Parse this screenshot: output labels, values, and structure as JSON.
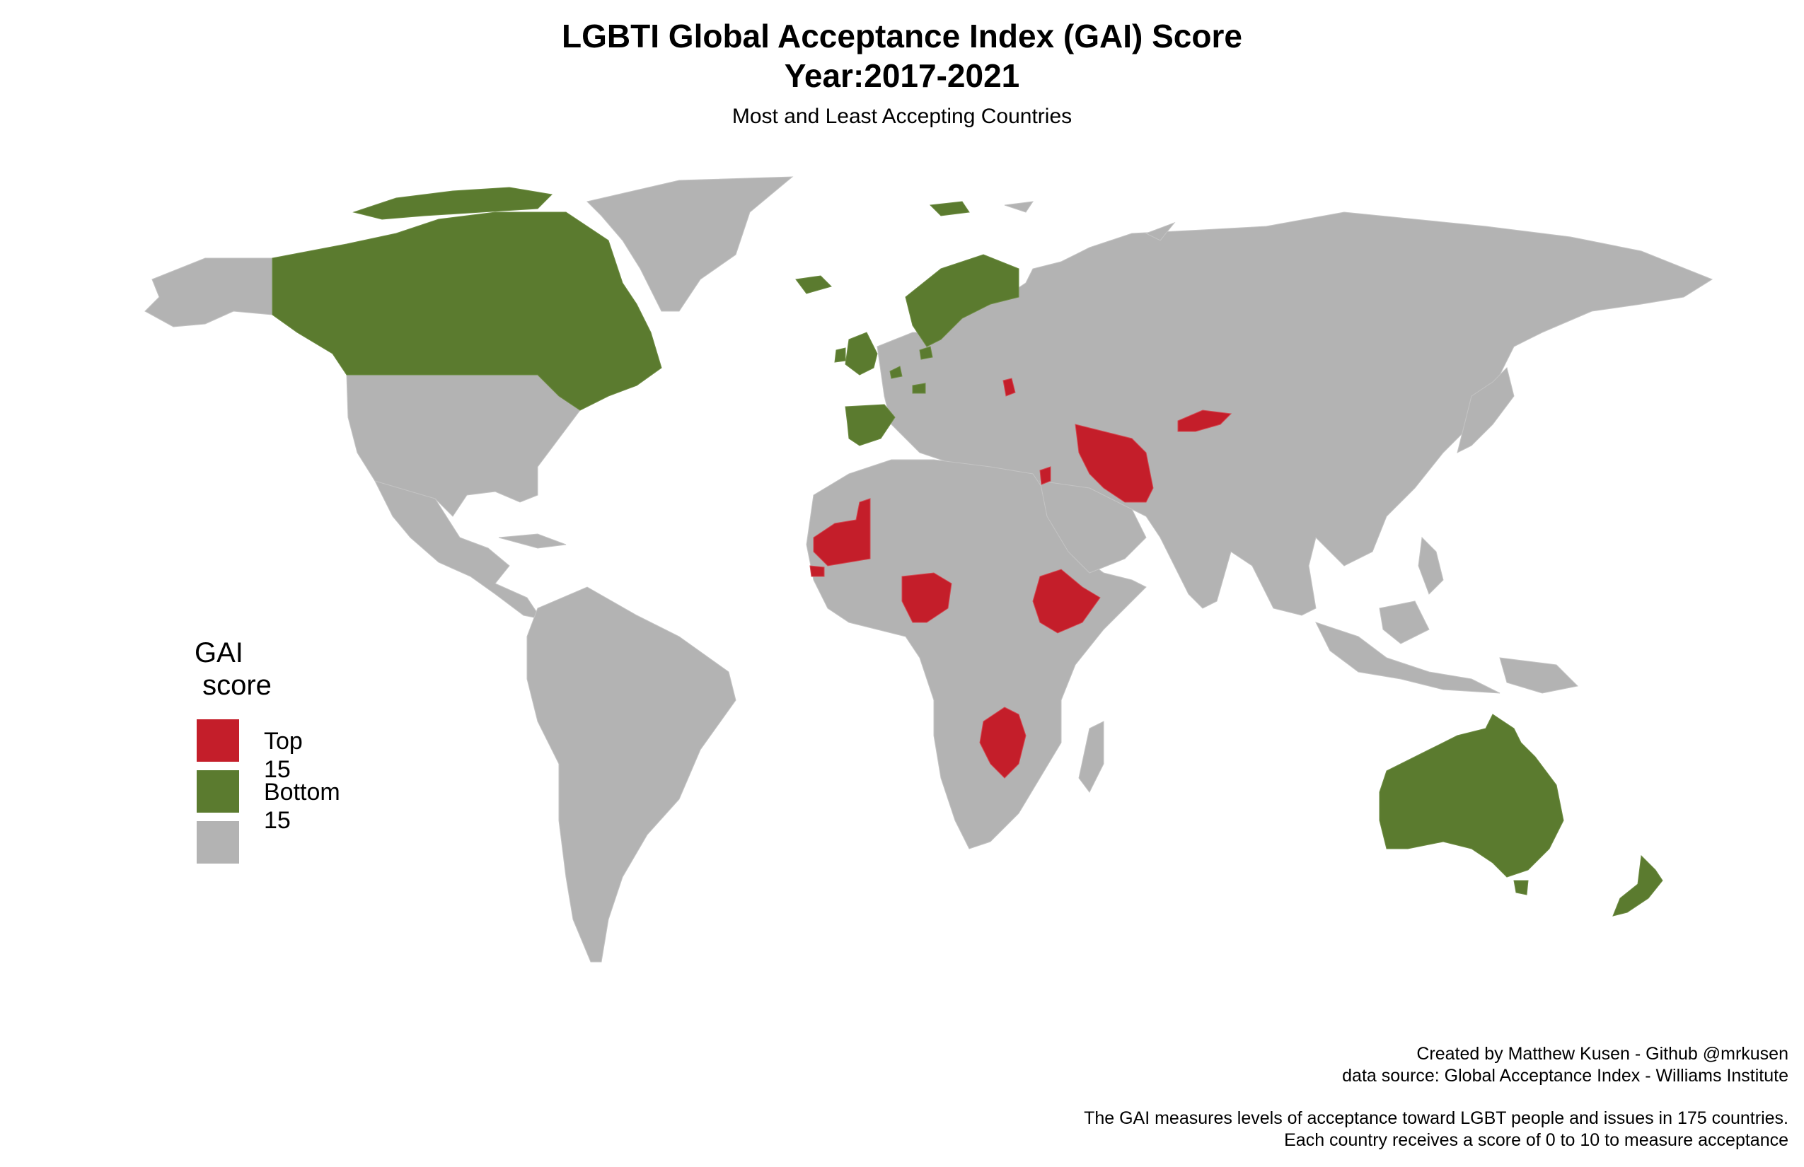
{
  "title_line1": "LGBTI Global Acceptance Index (GAI) Score",
  "title_line2": "Year:2017-2021",
  "subtitle": "Most and Least Accepting Countries",
  "legend": {
    "title": "GAI\n score",
    "items": [
      {
        "label": "Top 15",
        "color": "#c41e2a"
      },
      {
        "label": "Bottom 15",
        "color": "#5b7b2f"
      },
      {
        "label": "",
        "color": "#b3b3b3"
      }
    ]
  },
  "map_data": {
    "type": "choropleth",
    "default_color": "#b3b3b3",
    "top_15_color": "#c41e2a",
    "bottom_15_color": "#5b7b2f"
  },
  "caption": {
    "line1": "Created by Matthew Kusen - Github @mrkusen",
    "line2": "data source: Global Acceptance Index - Williams Institute",
    "line3": "The GAI measures levels of acceptance toward LGBT people and issues in 175 countries.",
    "line4": "Each country receives a score of 0 to 10 to measure acceptance"
  }
}
